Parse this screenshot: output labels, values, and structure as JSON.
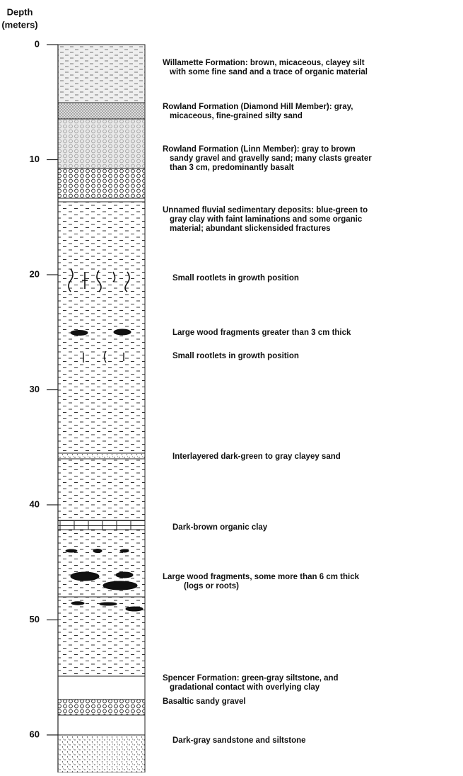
{
  "header": {
    "title": "Depth",
    "unit": "(meters)"
  },
  "axis": {
    "ticks": [
      0,
      10,
      20,
      30,
      40,
      50,
      60
    ]
  },
  "descriptions": [
    {
      "lines": [
        "Willamette Formation: brown, micaceous, clayey silt",
        "with some fine sand and a trace of organic material"
      ]
    },
    {
      "lines": [
        "Rowland Formation (Diamond Hill Member): gray,",
        "micaceous, fine-grained silty sand"
      ]
    },
    {
      "lines": [
        "Rowland Formation (Linn Member): gray to brown",
        "sandy gravel and gravelly sand; many clasts greater",
        "than 3 cm, predominantly basalt"
      ]
    },
    {
      "lines": [
        "Unnamed fluvial sedimentary deposits: blue-green to",
        "gray clay with faint laminations and some organic",
        "material; abundant slickensided fractures"
      ]
    },
    {
      "lines": [
        "Small rootlets in growth position"
      ]
    },
    {
      "lines": [
        "Large wood fragments greater than 3 cm thick"
      ]
    },
    {
      "lines": [
        "Small rootlets in growth position"
      ]
    },
    {
      "lines": [
        "Interlayered dark-green to gray clayey sand"
      ]
    },
    {
      "lines": [
        "Dark-brown organic clay"
      ]
    },
    {
      "lines": [
        "Large wood fragments, some more than 6 cm thick",
        "(logs or roots)"
      ]
    },
    {
      "lines": [
        "Spencer Formation: green-gray siltstone, and",
        "gradational contact with overlying clay"
      ]
    },
    {
      "lines": [
        "Basaltic sandy gravel"
      ]
    },
    {
      "lines": [
        "Dark-gray sandstone and siltstone"
      ]
    }
  ]
}
